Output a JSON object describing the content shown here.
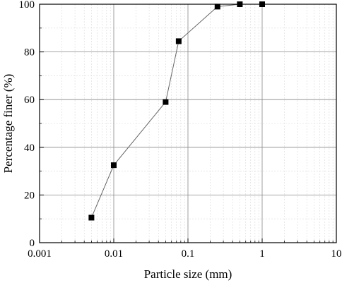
{
  "chart_data": {
    "type": "scatter",
    "xlabel": "Particle size (mm)",
    "ylabel": "Percentage finer (%)",
    "x_scale": "log",
    "xlim": [
      0.001,
      10
    ],
    "ylim": [
      0,
      100
    ],
    "x_ticks": [
      "0.001",
      "0.01",
      "0.1",
      "1",
      "10"
    ],
    "y_ticks": [
      "0",
      "20",
      "40",
      "60",
      "80",
      "100"
    ],
    "grid": true,
    "series": [
      {
        "marker": "square",
        "connected": true,
        "color": "#000000",
        "line_color": "#666666",
        "points": [
          {
            "x": 0.005,
            "y": 10.5
          },
          {
            "x": 0.01,
            "y": 32.5
          },
          {
            "x": 0.05,
            "y": 59
          },
          {
            "x": 0.075,
            "y": 84.5
          },
          {
            "x": 0.25,
            "y": 99
          },
          {
            "x": 0.5,
            "y": 100
          },
          {
            "x": 1,
            "y": 100
          }
        ]
      }
    ]
  }
}
